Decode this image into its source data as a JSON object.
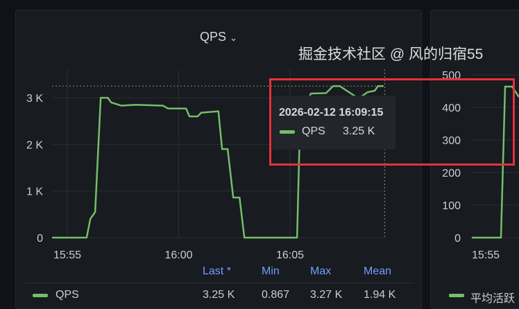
{
  "panel_left": {
    "title": "QPS",
    "legend": {
      "headers": [
        "Last *",
        "Min",
        "Max",
        "Mean"
      ],
      "series": "QPS",
      "values": [
        "3.25 K",
        "0.867",
        "3.27 K",
        "1.94 K"
      ]
    }
  },
  "panel_right": {
    "legend_series": "平均活跃",
    "y_ticks": [
      "500",
      "400",
      "300",
      "200",
      "100",
      "0"
    ],
    "x_tick": "15:55"
  },
  "tooltip": {
    "time": "2026-02-12 16:09:15",
    "series": "QPS",
    "value": "3.25 K"
  },
  "watermark": "掘金技术社区 @ 风的归宿55",
  "colors": {
    "series": "#73bf69",
    "highlight_box": "#e5323b",
    "legend_header": "#6e9fff"
  },
  "chart_data": {
    "type": "line",
    "title": "QPS",
    "x_ticks": [
      "15:55",
      "16:00",
      "16:05"
    ],
    "y_ticks": [
      "0",
      "1 K",
      "2 K",
      "3 K"
    ],
    "ylim": [
      0,
      3500
    ],
    "grid": true,
    "series": [
      {
        "name": "QPS",
        "points": [
          [
            "15:54:19",
            0
          ],
          [
            "15:55:52",
            0
          ],
          [
            "15:56:02",
            400
          ],
          [
            "15:56:15",
            550
          ],
          [
            "15:56:30",
            3000
          ],
          [
            "15:56:49",
            3000
          ],
          [
            "15:56:58",
            2900
          ],
          [
            "15:57:26",
            2830
          ],
          [
            "15:58:03",
            2850
          ],
          [
            "15:59:18",
            2830
          ],
          [
            "15:59:31",
            2770
          ],
          [
            "16:00:20",
            2770
          ],
          [
            "16:00:29",
            2600
          ],
          [
            "16:00:51",
            2600
          ],
          [
            "16:01:01",
            2680
          ],
          [
            "16:01:47",
            2710
          ],
          [
            "16:01:57",
            1900
          ],
          [
            "16:02:12",
            1900
          ],
          [
            "16:02:27",
            860
          ],
          [
            "16:02:44",
            860
          ],
          [
            "16:02:57",
            0
          ],
          [
            "16:05:19",
            0
          ],
          [
            "16:05:28",
            2830
          ],
          [
            "16:05:43",
            2830
          ],
          [
            "16:05:56",
            3090
          ],
          [
            "16:06:37",
            3100
          ],
          [
            "16:06:56",
            3250
          ],
          [
            "16:07:14",
            3250
          ],
          [
            "16:07:33",
            3150
          ],
          [
            "16:07:58",
            3020
          ],
          [
            "16:08:11",
            3020
          ],
          [
            "16:08:29",
            3120
          ],
          [
            "16:08:48",
            3150
          ],
          [
            "16:08:57",
            3250
          ],
          [
            "16:09:12",
            3250
          ]
        ]
      }
    ],
    "crosshair": {
      "time": "16:09:15",
      "value": 3250
    }
  }
}
